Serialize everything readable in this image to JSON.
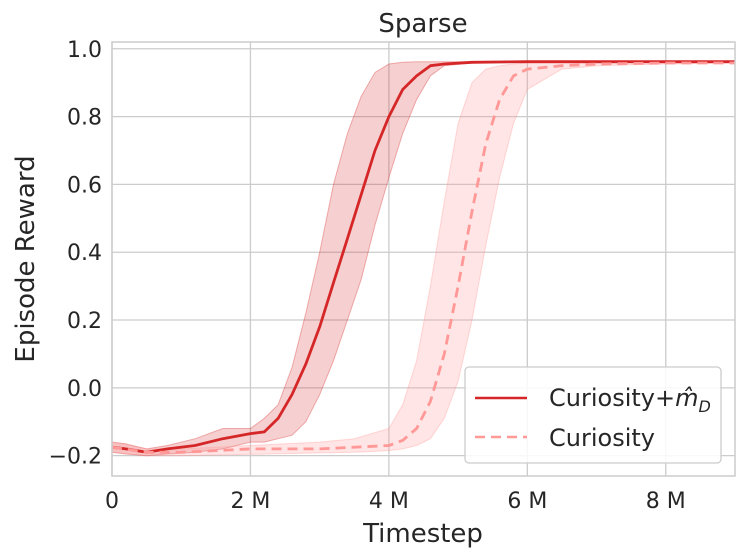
{
  "chart_data": {
    "type": "line",
    "title": "Sparse",
    "xlabel": "Timestep",
    "ylabel": "Episode Reward",
    "xlim": [
      0,
      9000000
    ],
    "ylim": [
      -0.26,
      1.02
    ],
    "grid": true,
    "legend_placement": "bottom-right",
    "x_ticks": [
      {
        "value": 0,
        "label": "0"
      },
      {
        "value": 2000000,
        "label": "2 M"
      },
      {
        "value": 4000000,
        "label": "4 M"
      },
      {
        "value": 6000000,
        "label": "6 M"
      },
      {
        "value": 8000000,
        "label": "8 M"
      }
    ],
    "y_ticks": [
      {
        "value": -0.2,
        "label": "−0.2"
      },
      {
        "value": 0.0,
        "label": "0.0"
      },
      {
        "value": 0.2,
        "label": "0.2"
      },
      {
        "value": 0.4,
        "label": "0.4"
      },
      {
        "value": 0.6,
        "label": "0.6"
      },
      {
        "value": 0.8,
        "label": "0.8"
      },
      {
        "value": 1.0,
        "label": "1.0"
      }
    ],
    "series": [
      {
        "name": "Curiosity+m̂_D",
        "color": "#d62728",
        "style": "solid",
        "x": [
          0,
          200000,
          500000,
          800000,
          1200000,
          1600000,
          2000000,
          2200000,
          2400000,
          2600000,
          2800000,
          3000000,
          3200000,
          3400000,
          3600000,
          3800000,
          4000000,
          4200000,
          4400000,
          4600000,
          4800000,
          5200000,
          6000000,
          7000000,
          8000000,
          9000000
        ],
        "y": [
          -0.175,
          -0.18,
          -0.19,
          -0.18,
          -0.17,
          -0.15,
          -0.135,
          -0.13,
          -0.09,
          -0.02,
          0.07,
          0.18,
          0.31,
          0.44,
          0.57,
          0.7,
          0.8,
          0.88,
          0.92,
          0.95,
          0.955,
          0.96,
          0.962,
          0.962,
          0.962,
          0.962
        ],
        "band_upper": [
          -0.16,
          -0.165,
          -0.18,
          -0.17,
          -0.15,
          -0.12,
          -0.12,
          -0.09,
          -0.05,
          0.06,
          0.22,
          0.4,
          0.6,
          0.75,
          0.86,
          0.93,
          0.955,
          0.96,
          0.962,
          0.962,
          0.962,
          0.962,
          0.962,
          0.962,
          0.962,
          0.962
        ],
        "band_lower": [
          -0.19,
          -0.195,
          -0.2,
          -0.195,
          -0.19,
          -0.18,
          -0.16,
          -0.16,
          -0.15,
          -0.14,
          -0.1,
          -0.02,
          0.08,
          0.2,
          0.32,
          0.48,
          0.62,
          0.75,
          0.85,
          0.92,
          0.95,
          0.958,
          0.962,
          0.962,
          0.962,
          0.962
        ]
      },
      {
        "name": "Curiosity",
        "color": "#ff9896",
        "style": "dashed",
        "x": [
          0,
          500000,
          1000000,
          1500000,
          2000000,
          2500000,
          3000000,
          3500000,
          4000000,
          4200000,
          4400000,
          4600000,
          4800000,
          5000000,
          5200000,
          5400000,
          5600000,
          5800000,
          6000000,
          6500000,
          7000000,
          8000000,
          9000000
        ],
        "y": [
          -0.175,
          -0.19,
          -0.19,
          -0.185,
          -0.18,
          -0.18,
          -0.18,
          -0.175,
          -0.17,
          -0.155,
          -0.12,
          -0.04,
          0.1,
          0.3,
          0.52,
          0.72,
          0.85,
          0.92,
          0.94,
          0.95,
          0.955,
          0.958,
          0.958
        ],
        "band_upper": [
          -0.16,
          -0.18,
          -0.18,
          -0.175,
          -0.17,
          -0.165,
          -0.16,
          -0.15,
          -0.12,
          -0.05,
          0.08,
          0.3,
          0.55,
          0.78,
          0.9,
          0.94,
          0.95,
          0.955,
          0.958,
          0.958,
          0.958,
          0.958,
          0.958
        ],
        "band_lower": [
          -0.19,
          -0.2,
          -0.2,
          -0.198,
          -0.196,
          -0.194,
          -0.192,
          -0.19,
          -0.185,
          -0.18,
          -0.17,
          -0.15,
          -0.09,
          0.02,
          0.2,
          0.42,
          0.62,
          0.78,
          0.88,
          0.94,
          0.95,
          0.955,
          0.958
        ]
      }
    ]
  }
}
